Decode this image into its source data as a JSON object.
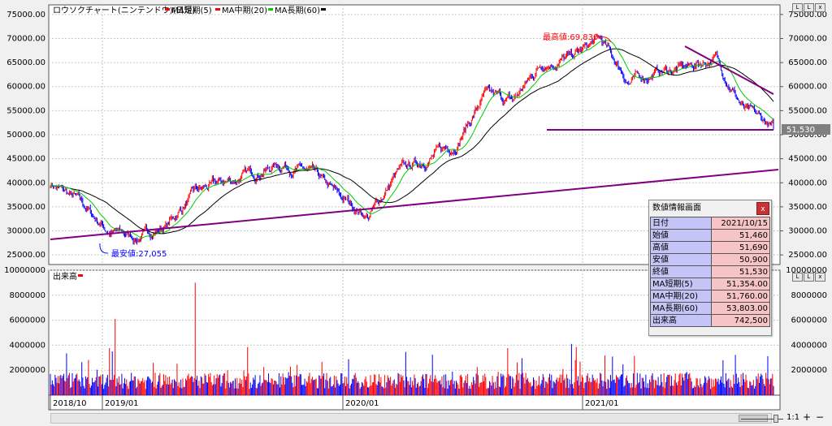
{
  "legend": {
    "title": "ロウソクチャート(ニンテンドウ)(日足)",
    "ma_short": "MA短期(5)",
    "ma_mid": "MA中期(20)",
    "ma_long": "MA長期(60)"
  },
  "volume_legend": "出来高",
  "colors": {
    "up": "#ff0000",
    "down": "#0000ff",
    "ma_short": "#ff0000",
    "ma_mid": "#00cc00",
    "ma_long": "#000000",
    "trendline": "#800080",
    "current_tag": "#808080"
  },
  "price_axis_ticks": [
    "75000.00",
    "70000.00",
    "65000.00",
    "60000.00",
    "55000.00",
    "50000.00",
    "45000.00",
    "40000.00",
    "35000.00",
    "30000.00",
    "25000.00"
  ],
  "volume_axis_ticks": [
    "10000000",
    "8000000",
    "6000000",
    "4000000",
    "2000000"
  ],
  "x_axis_labels": [
    "2018/10",
    "2019/01",
    "2020/01",
    "2021/01"
  ],
  "annotations": {
    "high_label": "最高値:69,830",
    "low_label": "最安値:27,055",
    "current_price": "51,530"
  },
  "info_panel": {
    "title": "数値情報画面",
    "close_label": "x",
    "rows": [
      {
        "k": "日付",
        "v": "2021/10/15"
      },
      {
        "k": "始値",
        "v": "51,460"
      },
      {
        "k": "高値",
        "v": "51,690"
      },
      {
        "k": "安値",
        "v": "50,900"
      },
      {
        "k": "終値",
        "v": "51,530"
      },
      {
        "k": "MA短期(5)",
        "v": "51,354.00"
      },
      {
        "k": "MA中期(20)",
        "v": "51,760.00"
      },
      {
        "k": "MA長期(60)",
        "v": "53,803.00"
      },
      {
        "k": "出来高",
        "v": "742,500"
      }
    ]
  },
  "window_buttons": [
    "L",
    "L",
    "x"
  ],
  "zoom_level": "1:1",
  "zoom_in": "+",
  "zoom_out": "−",
  "chart_data": [
    {
      "type": "candlestick",
      "title": "ロウソクチャート(ニンテンドウ)(日足)",
      "ylim": [
        23000,
        77000
      ],
      "x_labels": [
        "2018/10",
        "2019/01",
        "2020/01",
        "2021/01"
      ],
      "keypoints": [
        {
          "date": "2018/10",
          "close": 40000
        },
        {
          "date": "2018/11",
          "close": 36000
        },
        {
          "date": "2018/12",
          "close": 30000
        },
        {
          "date": "2019/01",
          "close": 28500
        },
        {
          "date": "2019/03",
          "close": 31000
        },
        {
          "date": "2019/05",
          "close": 38000
        },
        {
          "date": "2019/07",
          "close": 40000
        },
        {
          "date": "2019/09",
          "close": 42000
        },
        {
          "date": "2019/11",
          "close": 44000
        },
        {
          "date": "2020/01",
          "close": 42000
        },
        {
          "date": "2020/02",
          "close": 37000
        },
        {
          "date": "2020/03",
          "close": 33000
        },
        {
          "date": "2020/04",
          "close": 42000
        },
        {
          "date": "2020/05",
          "close": 45000
        },
        {
          "date": "2020/07",
          "close": 48000
        },
        {
          "date": "2020/08",
          "close": 58000
        },
        {
          "date": "2020/10",
          "close": 57000
        },
        {
          "date": "2020/11",
          "close": 65000
        },
        {
          "date": "2021/01",
          "close": 66000
        },
        {
          "date": "2021/02",
          "close": 69830
        },
        {
          "date": "2021/03",
          "close": 61000
        },
        {
          "date": "2021/05",
          "close": 63000
        },
        {
          "date": "2021/07",
          "close": 64000
        },
        {
          "date": "2021/08",
          "close": 66000
        },
        {
          "date": "2021/09",
          "close": 55000
        },
        {
          "date": "2021/10/15",
          "close": 51530
        }
      ],
      "max": {
        "label": "最高値:69,830",
        "value": 69830
      },
      "min": {
        "label": "最安値:27,055",
        "value": 27055
      },
      "last": {
        "date": "2021/10/15",
        "open": 51460,
        "high": 51690,
        "low": 50900,
        "close": 51530
      },
      "moving_averages": [
        {
          "name": "MA短期(5)",
          "last": 51354.0
        },
        {
          "name": "MA中期(20)",
          "last": 51760.0
        },
        {
          "name": "MA長期(60)",
          "last": 53803.0
        }
      ]
    },
    {
      "type": "bar",
      "title": "出来高",
      "ylim": [
        0,
        10000000
      ],
      "last_volume": 742500,
      "peak_volumes": [
        9000000,
        6100000,
        4100000,
        3500000
      ]
    }
  ]
}
